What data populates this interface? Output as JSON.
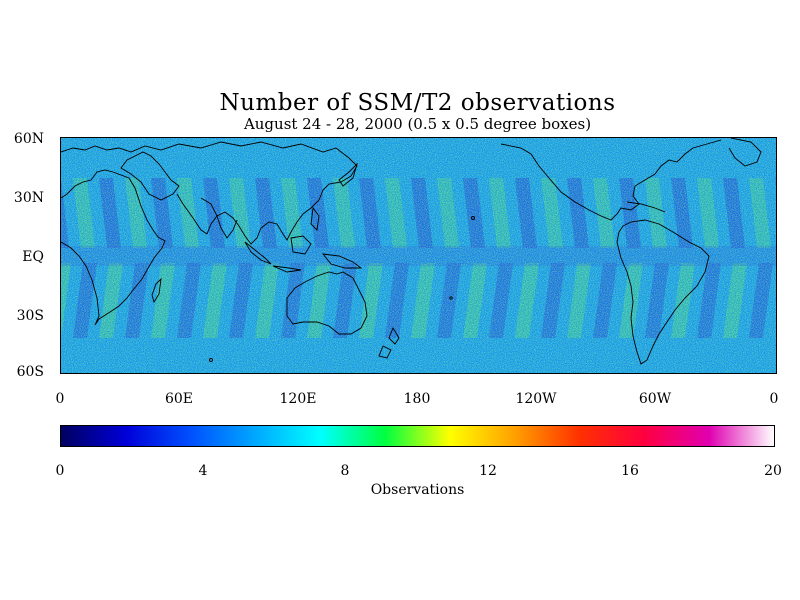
{
  "title": "Number of SSM/T2 observations",
  "subtitle": "August 24 - 28, 2000 (0.5 x 0.5 degree boxes)",
  "map": {
    "projection": "equirectangular",
    "lat_range": [
      -60,
      60
    ],
    "lon_range": [
      0,
      360
    ],
    "lat_labels": [
      "60N",
      "30N",
      "EQ",
      "30S",
      "60S"
    ],
    "lon_labels": [
      "0",
      "60E",
      "120E",
      "180",
      "120W",
      "60W",
      "0"
    ],
    "overlay": "coastlines"
  },
  "colorbar": {
    "title": "Observations",
    "range": [
      0,
      20
    ],
    "tick_labels": [
      "0",
      "4",
      "8",
      "12",
      "16",
      "20"
    ],
    "colors": [
      "#000060",
      "#0000d8",
      "#0050ff",
      "#00a8ff",
      "#00ffff",
      "#00ff40",
      "#ffff00",
      "#ffa000",
      "#ff3000",
      "#ff0040",
      "#e000b0",
      "#ffffff"
    ]
  }
}
